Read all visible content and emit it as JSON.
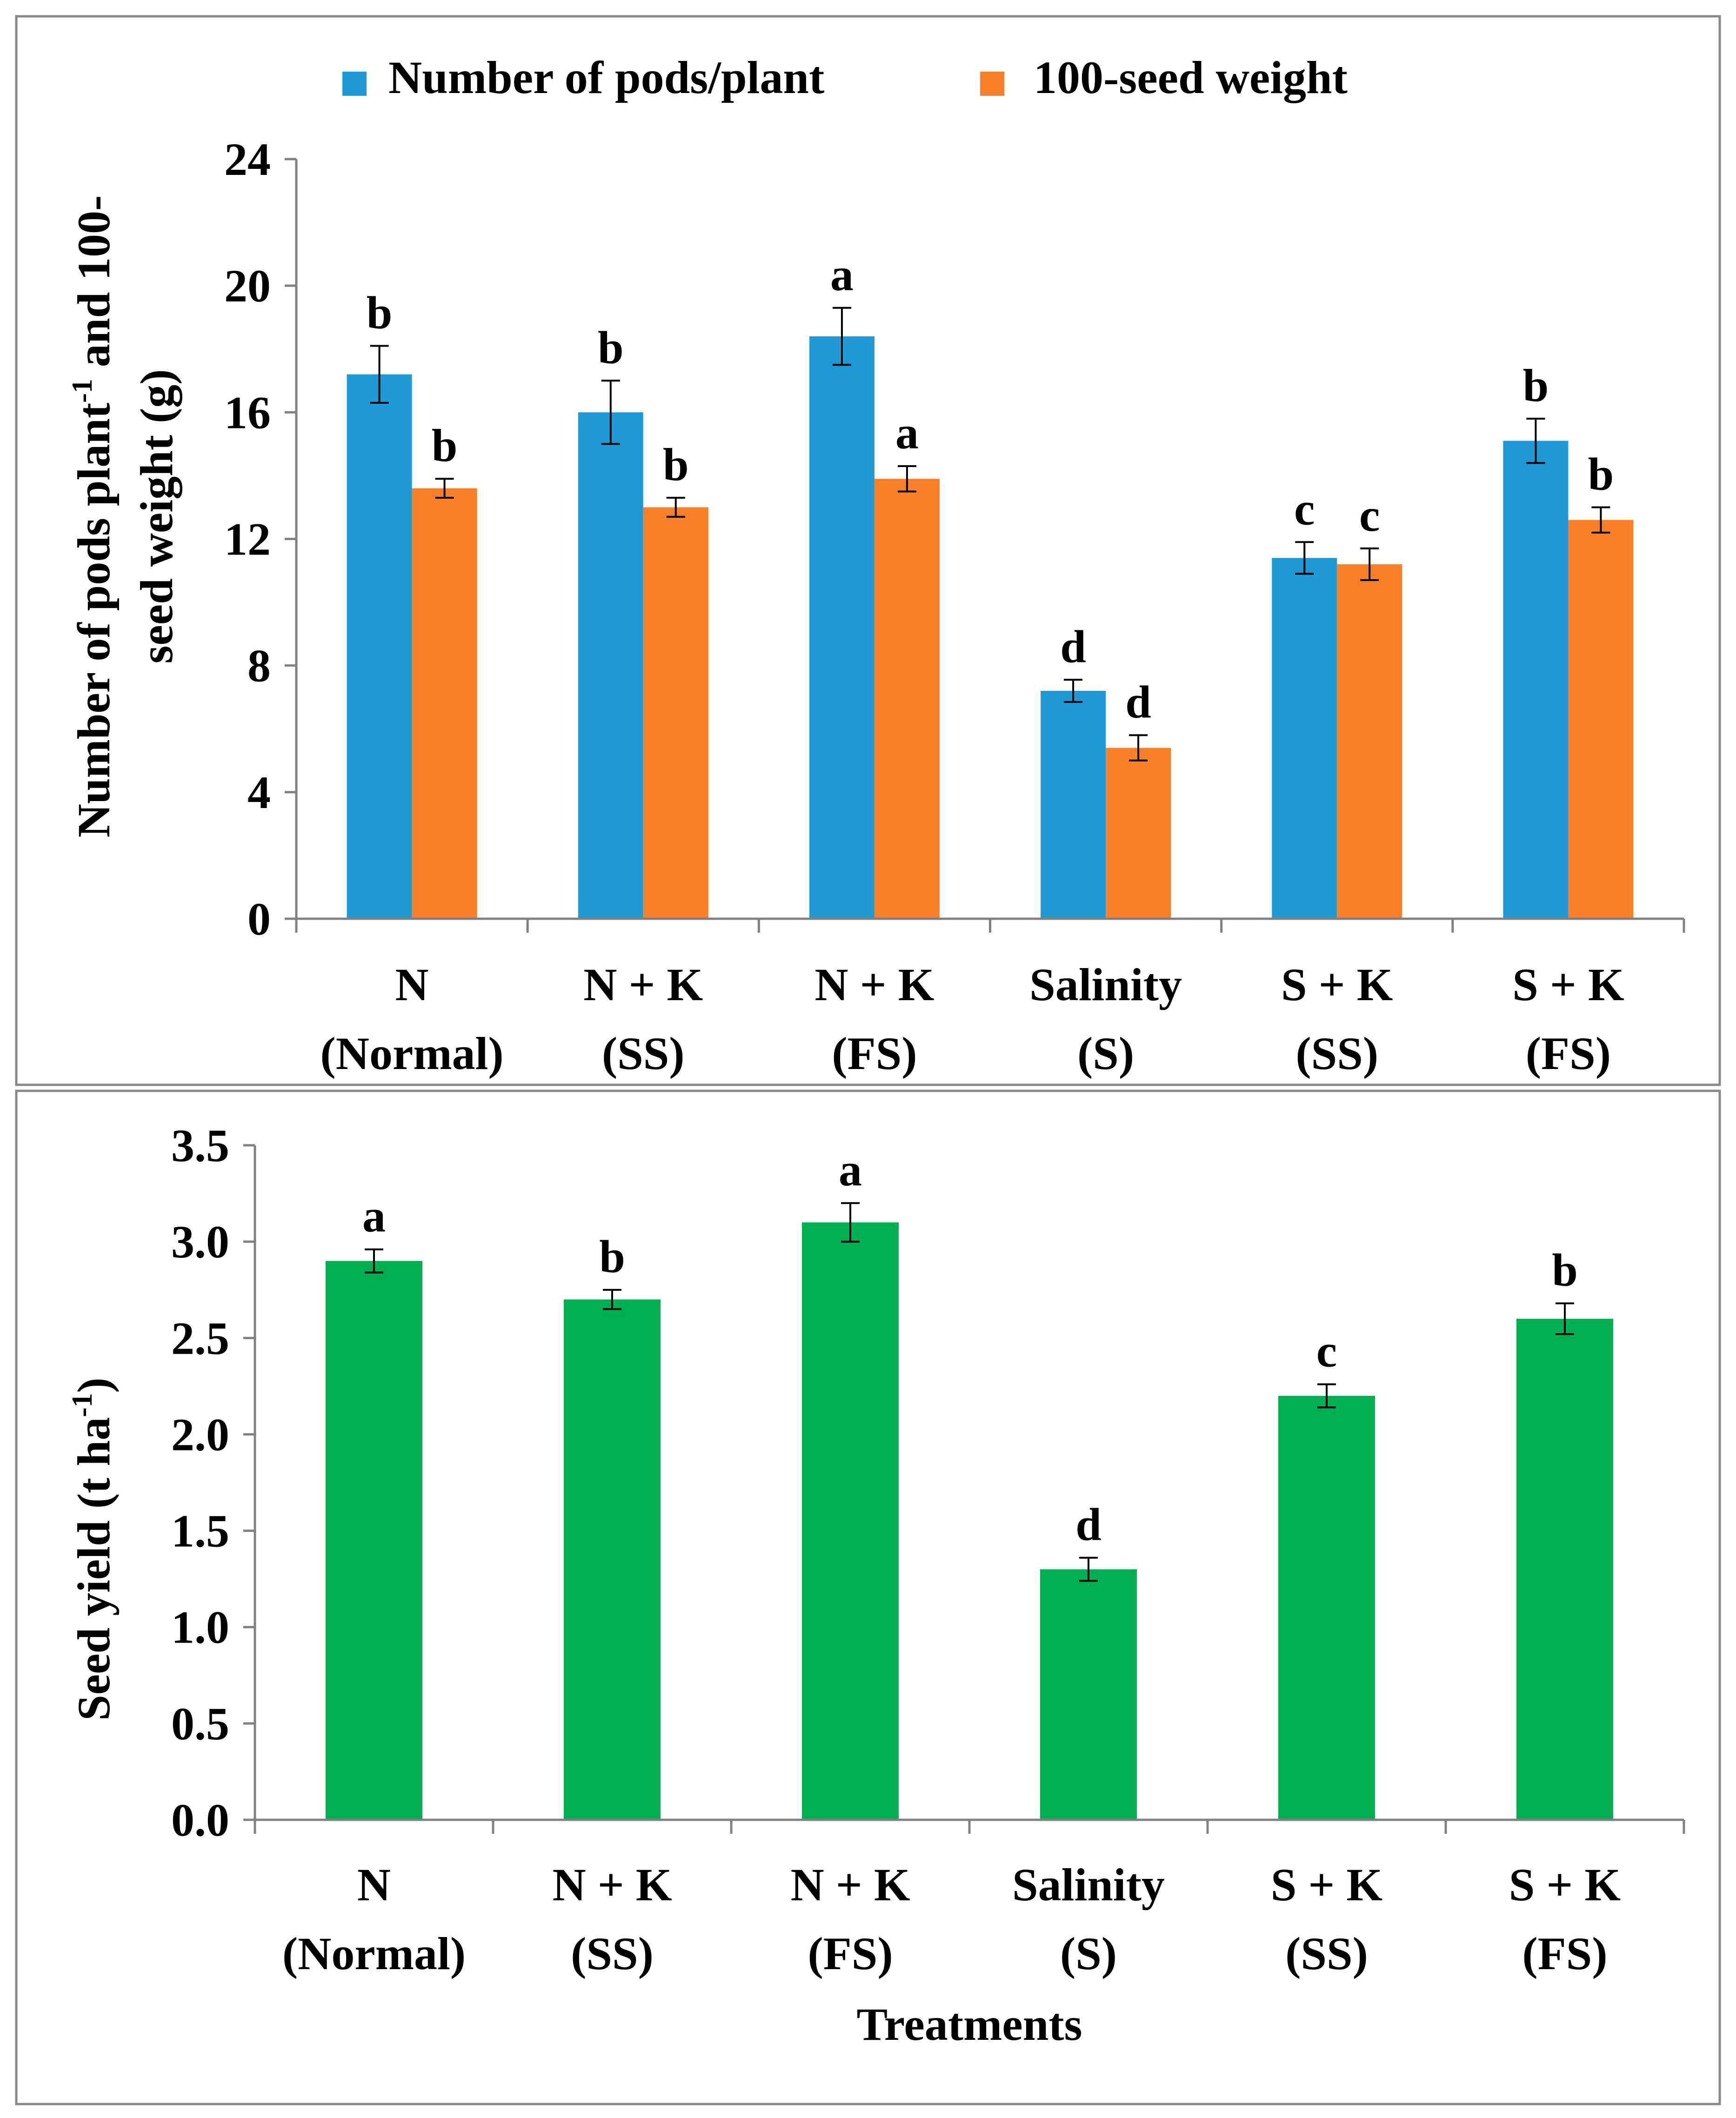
{
  "chart_data": [
    {
      "type": "bar",
      "title": "",
      "xlabel": "",
      "ylabel": "Number of pods plant",
      "ylabel_sup": "-1",
      "ylabel_rest": " and 100-",
      "ylabel_line2": "seed weight (g)",
      "ylim": [
        0,
        24
      ],
      "yticks": [
        "0",
        "4",
        "8",
        "12",
        "16",
        "20",
        "24"
      ],
      "grid": false,
      "legend_position": "top",
      "categories": [
        [
          "N",
          "(Normal)"
        ],
        [
          "N + K",
          "(SS)"
        ],
        [
          "N + K",
          "(FS)"
        ],
        [
          "Salinity",
          "(S)"
        ],
        [
          "S + K",
          "(SS)"
        ],
        [
          "S + K",
          "(FS)"
        ]
      ],
      "series": [
        {
          "name": "Number of pods/plant",
          "color": "#1f9ad6",
          "values": [
            17.2,
            16.0,
            18.4,
            7.2,
            11.4,
            15.1
          ],
          "errors": [
            0.9,
            1.0,
            0.9,
            0.35,
            0.5,
            0.7
          ],
          "letters": [
            "b",
            "b",
            "a",
            "d",
            "c",
            "b"
          ]
        },
        {
          "name": "100-seed weight",
          "color": "#f8802a",
          "values": [
            13.6,
            13.0,
            13.9,
            5.4,
            11.2,
            12.6
          ],
          "errors": [
            0.3,
            0.3,
            0.4,
            0.4,
            0.5,
            0.4
          ],
          "letters": [
            "b",
            "b",
            "a",
            "d",
            "c",
            "b"
          ]
        }
      ]
    },
    {
      "type": "bar",
      "title": "",
      "xlabel": "Treatments",
      "ylabel": "Seed yield (t ha",
      "ylabel_sup": "-1",
      "ylabel_rest": ")",
      "ylim": [
        0,
        3.5
      ],
      "yticks": [
        "0.0",
        "0.5",
        "1.0",
        "1.5",
        "2.0",
        "2.5",
        "3.0",
        "3.5"
      ],
      "grid": false,
      "categories": [
        [
          "N",
          "(Normal)"
        ],
        [
          "N + K",
          "(SS)"
        ],
        [
          "N + K",
          "(FS)"
        ],
        [
          "Salinity",
          "(S)"
        ],
        [
          "S + K",
          "(SS)"
        ],
        [
          "S + K",
          "(FS)"
        ]
      ],
      "series": [
        {
          "name": "Seed yield",
          "color": "#00b050",
          "values": [
            2.9,
            2.7,
            3.1,
            1.3,
            2.2,
            2.6
          ],
          "errors": [
            0.06,
            0.05,
            0.1,
            0.06,
            0.06,
            0.08
          ],
          "letters": [
            "a",
            "b",
            "a",
            "d",
            "c",
            "b"
          ]
        }
      ]
    }
  ]
}
